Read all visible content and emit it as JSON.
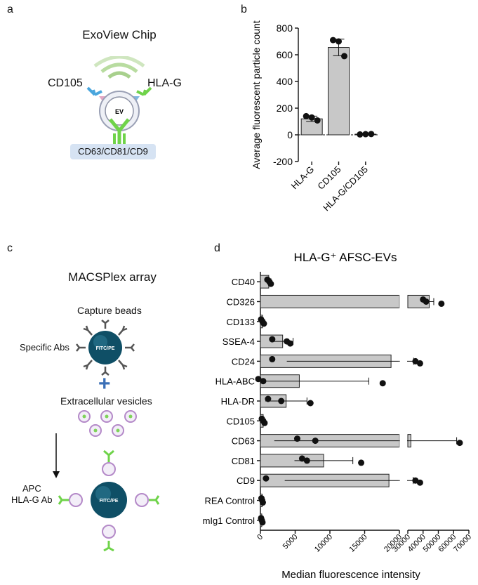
{
  "panels": {
    "a": "a",
    "b": "b",
    "c": "c",
    "d": "d"
  },
  "exoview": {
    "title": "ExoView Chip",
    "left_ab": "CD105",
    "right_ab": "HLA-G",
    "ev_label": "EV",
    "capture_label": "CD63/CD81/CD9"
  },
  "macsplex": {
    "title": "MACSPlex array",
    "capture_beads": "Capture beads",
    "specific_abs": "Specific Abs",
    "bead_label": "FITC/PE",
    "plus": "+",
    "ev_text": "Extracellular vesicles",
    "apc_line1": "APC",
    "apc_line2": "HLA-G Ab",
    "bead_label2": "FITC/PE"
  },
  "chart_data": [
    {
      "type": "bar",
      "ylabel": "Average fluorescent particle count",
      "ylim": [
        -200,
        800
      ],
      "yticks": [
        800,
        600,
        400,
        200,
        0,
        -200
      ],
      "categories": [
        "HLA-G",
        "CD105",
        "HLA-G/CD105"
      ],
      "values": [
        120,
        655,
        5
      ],
      "sd": [
        20,
        62,
        3
      ],
      "points": [
        [
          140,
          130,
          108
        ],
        [
          710,
          700,
          590
        ],
        [
          3,
          5,
          6
        ]
      ]
    },
    {
      "type": "bar",
      "title": "HLA-G⁺ AFSC-EVs",
      "xlabel": "Median fluorescence intensity",
      "broken_axis": {
        "segment1": [
          0,
          20000
        ],
        "segment2": [
          30000,
          70000
        ]
      },
      "xticks1": [
        "0",
        "5000",
        "10000",
        "15000",
        "20000"
      ],
      "xticks2": [
        "30000",
        "40000",
        "50000",
        "60000",
        "70000"
      ],
      "categories": [
        "CD40",
        "CD326",
        "CD133",
        "SSEA-4",
        "CD24",
        "HLA-ABC",
        "HLA-DR",
        "CD105",
        "CD63",
        "CD81",
        "CD9",
        "REA Control",
        "mIg1 Control"
      ],
      "values": [
        1200,
        44000,
        300,
        3200,
        18800,
        5600,
        3700,
        400,
        32000,
        9100,
        18500,
        250,
        200
      ],
      "sd": [
        300,
        3000,
        150,
        1500,
        15000,
        10000,
        3000,
        150,
        30000,
        4200,
        15000,
        100,
        100
      ],
      "points": [
        [
          1000,
          1300,
          1500
        ],
        [
          40000,
          42000,
          52000
        ],
        [
          100,
          300,
          500
        ],
        [
          1700,
          3800,
          4300
        ],
        [
          1700,
          35000,
          38000
        ],
        [
          -300,
          400,
          17600
        ],
        [
          1100,
          3000,
          7200
        ],
        [
          200,
          400,
          600
        ],
        [
          5300,
          7900,
          64000
        ],
        [
          6000,
          6700,
          14500
        ],
        [
          800,
          35000,
          38000
        ],
        [
          150,
          250,
          350
        ],
        [
          100,
          200,
          300
        ]
      ]
    }
  ]
}
